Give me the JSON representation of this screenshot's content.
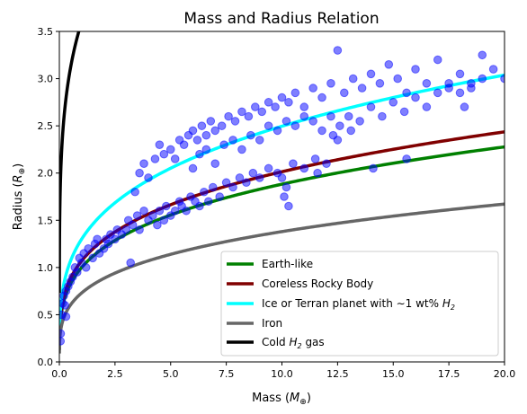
{
  "chart_data": {
    "type": "scatter",
    "title": "Mass and Radius Relation",
    "xlabel": {
      "base": "Mass (",
      "var": "M",
      "sub": "⊕",
      "close": ")"
    },
    "ylabel": {
      "base": "Radius (",
      "var": "R",
      "sub": "⊕",
      "close": ")"
    },
    "xlim": [
      0,
      20
    ],
    "ylim": [
      0,
      3.5
    ],
    "xticks": [
      "0.0",
      "2.5",
      "5.0",
      "7.5",
      "10.0",
      "12.5",
      "15.0",
      "17.5",
      "20.0"
    ],
    "yticks": [
      "0.0",
      "0.5",
      "1.0",
      "1.5",
      "2.0",
      "2.5",
      "3.0",
      "3.5"
    ],
    "grid": false,
    "legend_position": "lower-right",
    "scatter": {
      "color": "#0000ff",
      "alpha": 0.5,
      "points": [
        [
          0.05,
          0.22
        ],
        [
          0.06,
          0.3
        ],
        [
          0.1,
          0.5
        ],
        [
          0.15,
          0.62
        ],
        [
          0.2,
          0.7
        ],
        [
          0.25,
          0.6
        ],
        [
          0.3,
          0.75
        ],
        [
          0.3,
          0.48
        ],
        [
          0.4,
          0.8
        ],
        [
          0.5,
          0.85
        ],
        [
          0.6,
          0.9
        ],
        [
          0.7,
          1.0
        ],
        [
          0.8,
          0.95
        ],
        [
          0.9,
          1.1
        ],
        [
          1.0,
          1.05
        ],
        [
          1.1,
          1.15
        ],
        [
          1.2,
          1.0
        ],
        [
          1.3,
          1.2
        ],
        [
          1.5,
          1.1
        ],
        [
          1.6,
          1.25
        ],
        [
          1.7,
          1.3
        ],
        [
          1.8,
          1.15
        ],
        [
          2.0,
          1.2
        ],
        [
          2.1,
          1.3
        ],
        [
          2.2,
          1.25
        ],
        [
          2.3,
          1.35
        ],
        [
          2.5,
          1.3
        ],
        [
          2.6,
          1.4
        ],
        [
          2.8,
          1.35
        ],
        [
          3.0,
          1.4
        ],
        [
          3.1,
          1.5
        ],
        [
          3.2,
          1.05
        ],
        [
          3.3,
          1.45
        ],
        [
          3.5,
          1.55
        ],
        [
          3.6,
          1.4
        ],
        [
          3.8,
          1.6
        ],
        [
          4.0,
          1.5
        ],
        [
          4.2,
          1.55
        ],
        [
          4.4,
          1.45
        ],
        [
          4.5,
          1.6
        ],
        [
          4.7,
          1.5
        ],
        [
          4.8,
          1.65
        ],
        [
          5.0,
          1.55
        ],
        [
          5.2,
          1.6
        ],
        [
          5.4,
          1.7
        ],
        [
          5.5,
          1.65
        ],
        [
          5.7,
          1.6
        ],
        [
          5.9,
          1.75
        ],
        [
          6.1,
          1.7
        ],
        [
          6.3,
          1.65
        ],
        [
          6.5,
          1.8
        ],
        [
          6.7,
          1.7
        ],
        [
          6.9,
          1.85
        ],
        [
          7.2,
          1.75
        ],
        [
          7.5,
          1.9
        ],
        [
          7.8,
          1.85
        ],
        [
          8.1,
          1.95
        ],
        [
          8.4,
          1.9
        ],
        [
          8.7,
          2.0
        ],
        [
          9.0,
          1.95
        ],
        [
          9.4,
          2.05
        ],
        [
          9.8,
          2.0
        ],
        [
          10.0,
          1.95
        ],
        [
          10.1,
          1.75
        ],
        [
          10.2,
          1.85
        ],
        [
          10.3,
          1.65
        ],
        [
          10.5,
          2.1
        ],
        [
          11.0,
          2.05
        ],
        [
          11.5,
          2.15
        ],
        [
          12.0,
          2.1
        ],
        [
          3.4,
          1.8
        ],
        [
          3.6,
          2.0
        ],
        [
          3.8,
          2.1
        ],
        [
          4.0,
          1.95
        ],
        [
          4.3,
          2.15
        ],
        [
          4.5,
          2.3
        ],
        [
          4.7,
          2.2
        ],
        [
          5.0,
          2.25
        ],
        [
          5.2,
          2.15
        ],
        [
          5.4,
          2.35
        ],
        [
          5.6,
          2.3
        ],
        [
          5.8,
          2.4
        ],
        [
          6.0,
          2.45
        ],
        [
          6.2,
          2.35
        ],
        [
          6.4,
          2.5
        ],
        [
          6.6,
          2.4
        ],
        [
          6.8,
          2.55
        ],
        [
          7.0,
          2.45
        ],
        [
          7.3,
          2.5
        ],
        [
          7.6,
          2.6
        ],
        [
          7.9,
          2.55
        ],
        [
          8.2,
          2.65
        ],
        [
          8.5,
          2.6
        ],
        [
          8.8,
          2.7
        ],
        [
          9.1,
          2.65
        ],
        [
          9.4,
          2.75
        ],
        [
          9.7,
          2.7
        ],
        [
          10.0,
          2.8
        ],
        [
          10.3,
          2.75
        ],
        [
          10.6,
          2.85
        ],
        [
          11.0,
          2.7
        ],
        [
          11.4,
          2.9
        ],
        [
          11.8,
          2.8
        ],
        [
          12.2,
          2.95
        ],
        [
          12.5,
          3.3
        ],
        [
          12.8,
          2.85
        ],
        [
          13.2,
          3.0
        ],
        [
          13.6,
          2.9
        ],
        [
          14.0,
          3.05
        ],
        [
          14.4,
          2.95
        ],
        [
          14.8,
          3.15
        ],
        [
          15.2,
          3.0
        ],
        [
          15.6,
          2.85
        ],
        [
          16.0,
          3.1
        ],
        [
          16.5,
          2.95
        ],
        [
          17.0,
          3.2
        ],
        [
          17.5,
          2.9
        ],
        [
          18.0,
          3.05
        ],
        [
          18.5,
          2.95
        ],
        [
          19.0,
          3.25
        ],
        [
          19.5,
          3.1
        ],
        [
          20.0,
          3.0
        ],
        [
          6.0,
          2.05
        ],
        [
          6.3,
          2.2
        ],
        [
          6.6,
          2.25
        ],
        [
          7.0,
          2.1
        ],
        [
          7.4,
          2.3
        ],
        [
          7.8,
          2.35
        ],
        [
          8.2,
          2.25
        ],
        [
          8.6,
          2.4
        ],
        [
          9.0,
          2.35
        ],
        [
          9.4,
          2.5
        ],
        [
          9.8,
          2.45
        ],
        [
          10.2,
          2.55
        ],
        [
          10.6,
          2.5
        ],
        [
          11.0,
          2.6
        ],
        [
          11.4,
          2.55
        ],
        [
          11.8,
          2.45
        ],
        [
          12.2,
          2.6
        ],
        [
          12.6,
          2.5
        ],
        [
          13.0,
          2.6
        ],
        [
          13.5,
          2.55
        ],
        [
          14.0,
          2.7
        ],
        [
          14.5,
          2.6
        ],
        [
          15.0,
          2.75
        ],
        [
          15.5,
          2.65
        ],
        [
          16.0,
          2.8
        ],
        [
          16.5,
          2.7
        ],
        [
          17.0,
          2.85
        ],
        [
          17.5,
          2.95
        ],
        [
          18.0,
          2.85
        ],
        [
          18.5,
          2.9
        ],
        [
          19.0,
          3.0
        ],
        [
          12.3,
          2.4
        ],
        [
          12.5,
          2.35
        ],
        [
          13.1,
          2.45
        ],
        [
          18.2,
          2.7
        ],
        [
          15.6,
          2.15
        ],
        [
          14.1,
          2.05
        ],
        [
          11.6,
          2.0
        ]
      ]
    },
    "series": [
      {
        "name": "Earth-like",
        "color": "#008000",
        "a": 1.0,
        "b": 0.2747
      },
      {
        "name": "Coreless Rocky Body",
        "color": "#800000",
        "a": 1.07,
        "b": 0.2747
      },
      {
        "name": "Ice or Terran planet with ∼1 wt% H₂",
        "color": "#00ffff",
        "a": 1.3,
        "b": 0.2833
      },
      {
        "name": "Iron",
        "color": "#666666",
        "a": 0.73,
        "b": 0.2766
      },
      {
        "name": "Cold H₂ gas",
        "color": "#000000",
        "a": 3.6,
        "b": 0.21
      }
    ],
    "legend": {
      "items": [
        {
          "color": "#008000",
          "label": "Earth-like"
        },
        {
          "color": "#800000",
          "label": "Coreless Rocky Body"
        },
        {
          "color": "#00ffff",
          "label_pre": "Ice or Terran planet with ∼1 wt% ",
          "label_var": "H",
          "label_sub": "2"
        },
        {
          "color": "#666666",
          "label": "Iron"
        },
        {
          "color": "#000000",
          "label_pre": "Cold ",
          "label_var": "H",
          "label_sub": "2",
          "label_post": " gas"
        }
      ]
    }
  }
}
